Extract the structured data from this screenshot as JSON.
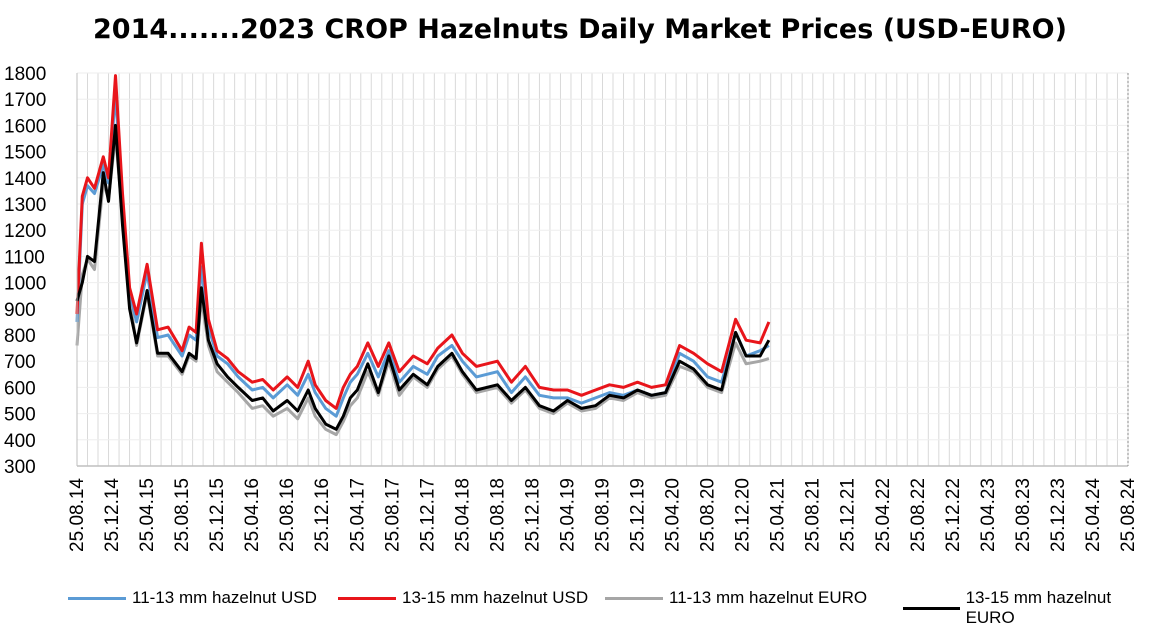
{
  "chart_data": {
    "type": "line",
    "title": "2014.......2023  CROP Hazelnuts Daily Market Prices (USD-EURO)",
    "xlabel": "",
    "ylabel": "",
    "ylim": [
      300,
      1800
    ],
    "y_ticks": [
      300,
      400,
      500,
      600,
      700,
      800,
      900,
      1000,
      1100,
      1200,
      1300,
      1400,
      1500,
      1600,
      1700,
      1800
    ],
    "x_tick_labels": [
      "25.08.14",
      "25.12.14",
      "25.04.15",
      "25.08.15",
      "25.12.15",
      "25.04.16",
      "25.08.16",
      "25.12.16",
      "25.04.17",
      "25.08.17",
      "25.12.17",
      "25.04.18",
      "25.08.18",
      "25.12.18",
      "25.04.19",
      "25.08.19",
      "25.12.19",
      "25.04.20",
      "25.08.20",
      "25.12.20",
      "25.04.21",
      "25.08.21",
      "25.12.21",
      "25.04.22",
      "25.08.22",
      "25.12.22",
      "25.04.23",
      "25.08.23",
      "25.12.23",
      "25.04.24",
      "25.08.24"
    ],
    "grid": true,
    "legend_position": "bottom",
    "series": [
      {
        "name": "11-13 mm hazelnut USD",
        "color": "#5B9BD5",
        "values": [
          [
            0,
            850
          ],
          [
            0.15,
            1300
          ],
          [
            0.3,
            1370
          ],
          [
            0.5,
            1340
          ],
          [
            0.75,
            1450
          ],
          [
            0.9,
            1380
          ],
          [
            1.1,
            1720
          ],
          [
            1.3,
            1320
          ],
          [
            1.5,
            960
          ],
          [
            1.7,
            850
          ],
          [
            2,
            1040
          ],
          [
            2.3,
            790
          ],
          [
            2.6,
            800
          ],
          [
            3,
            720
          ],
          [
            3.2,
            800
          ],
          [
            3.4,
            780
          ],
          [
            3.55,
            1060
          ],
          [
            3.75,
            830
          ],
          [
            4,
            720
          ],
          [
            4.3,
            690
          ],
          [
            4.6,
            640
          ],
          [
            5,
            590
          ],
          [
            5.3,
            600
          ],
          [
            5.6,
            560
          ],
          [
            6,
            610
          ],
          [
            6.3,
            570
          ],
          [
            6.6,
            650
          ],
          [
            6.8,
            580
          ],
          [
            7.1,
            520
          ],
          [
            7.4,
            490
          ],
          [
            7.6,
            560
          ],
          [
            7.8,
            620
          ],
          [
            8,
            650
          ],
          [
            8.3,
            730
          ],
          [
            8.6,
            640
          ],
          [
            8.9,
            740
          ],
          [
            9.2,
            620
          ],
          [
            9.6,
            680
          ],
          [
            10,
            650
          ],
          [
            10.3,
            720
          ],
          [
            10.7,
            760
          ],
          [
            11,
            700
          ],
          [
            11.4,
            640
          ],
          [
            12,
            660
          ],
          [
            12.4,
            580
          ],
          [
            12.8,
            640
          ],
          [
            13.2,
            570
          ],
          [
            13.6,
            560
          ],
          [
            14,
            560
          ],
          [
            14.4,
            540
          ],
          [
            14.8,
            560
          ],
          [
            15.2,
            580
          ],
          [
            15.6,
            570
          ],
          [
            16,
            590
          ],
          [
            16.4,
            570
          ],
          [
            16.8,
            580
          ],
          [
            17.2,
            730
          ],
          [
            17.6,
            700
          ],
          [
            18,
            640
          ],
          [
            18.4,
            620
          ],
          [
            18.8,
            810
          ],
          [
            19.1,
            720
          ],
          [
            19.5,
            740
          ],
          [
            19.75,
            760
          ]
        ]
      },
      {
        "name": "13-15 mm hazelnut USD",
        "color": "#E8151B",
        "values": [
          [
            0,
            880
          ],
          [
            0.15,
            1330
          ],
          [
            0.3,
            1400
          ],
          [
            0.5,
            1360
          ],
          [
            0.75,
            1480
          ],
          [
            0.9,
            1400
          ],
          [
            1.1,
            1790
          ],
          [
            1.3,
            1340
          ],
          [
            1.5,
            980
          ],
          [
            1.7,
            880
          ],
          [
            2,
            1070
          ],
          [
            2.3,
            820
          ],
          [
            2.6,
            830
          ],
          [
            3,
            740
          ],
          [
            3.2,
            830
          ],
          [
            3.4,
            810
          ],
          [
            3.55,
            1150
          ],
          [
            3.75,
            860
          ],
          [
            4,
            740
          ],
          [
            4.3,
            710
          ],
          [
            4.6,
            660
          ],
          [
            5,
            620
          ],
          [
            5.3,
            630
          ],
          [
            5.6,
            590
          ],
          [
            6,
            640
          ],
          [
            6.3,
            600
          ],
          [
            6.6,
            700
          ],
          [
            6.8,
            610
          ],
          [
            7.1,
            550
          ],
          [
            7.4,
            520
          ],
          [
            7.6,
            600
          ],
          [
            7.8,
            650
          ],
          [
            8,
            680
          ],
          [
            8.3,
            770
          ],
          [
            8.6,
            680
          ],
          [
            8.9,
            770
          ],
          [
            9.2,
            660
          ],
          [
            9.6,
            720
          ],
          [
            10,
            690
          ],
          [
            10.3,
            750
          ],
          [
            10.7,
            800
          ],
          [
            11,
            730
          ],
          [
            11.4,
            680
          ],
          [
            12,
            700
          ],
          [
            12.4,
            620
          ],
          [
            12.8,
            680
          ],
          [
            13.2,
            600
          ],
          [
            13.6,
            590
          ],
          [
            14,
            590
          ],
          [
            14.4,
            570
          ],
          [
            14.8,
            590
          ],
          [
            15.2,
            610
          ],
          [
            15.6,
            600
          ],
          [
            16,
            620
          ],
          [
            16.4,
            600
          ],
          [
            16.8,
            610
          ],
          [
            17.2,
            760
          ],
          [
            17.6,
            730
          ],
          [
            18,
            690
          ],
          [
            18.4,
            660
          ],
          [
            18.8,
            860
          ],
          [
            19.1,
            780
          ],
          [
            19.5,
            770
          ],
          [
            19.75,
            850
          ]
        ]
      },
      {
        "name": "11-13 mm hazelnut EURO",
        "color": "#A6A6A6",
        "values": [
          [
            0,
            760
          ],
          [
            0.15,
            1030
          ],
          [
            0.3,
            1090
          ],
          [
            0.5,
            1050
          ],
          [
            0.75,
            1380
          ],
          [
            0.9,
            1320
          ],
          [
            1.1,
            1560
          ],
          [
            1.3,
            1250
          ],
          [
            1.5,
            940
          ],
          [
            1.7,
            760
          ],
          [
            2,
            960
          ],
          [
            2.3,
            720
          ],
          [
            2.6,
            720
          ],
          [
            3,
            650
          ],
          [
            3.2,
            720
          ],
          [
            3.4,
            700
          ],
          [
            3.55,
            940
          ],
          [
            3.75,
            760
          ],
          [
            4,
            660
          ],
          [
            4.3,
            620
          ],
          [
            4.6,
            580
          ],
          [
            5,
            520
          ],
          [
            5.3,
            530
          ],
          [
            5.6,
            490
          ],
          [
            6,
            520
          ],
          [
            6.3,
            480
          ],
          [
            6.6,
            560
          ],
          [
            6.8,
            490
          ],
          [
            7.1,
            440
          ],
          [
            7.4,
            420
          ],
          [
            7.6,
            470
          ],
          [
            7.8,
            530
          ],
          [
            8,
            560
          ],
          [
            8.3,
            660
          ],
          [
            8.6,
            570
          ],
          [
            8.9,
            700
          ],
          [
            9.2,
            570
          ],
          [
            9.6,
            640
          ],
          [
            10,
            600
          ],
          [
            10.3,
            670
          ],
          [
            10.7,
            720
          ],
          [
            11,
            650
          ],
          [
            11.4,
            580
          ],
          [
            12,
            600
          ],
          [
            12.4,
            540
          ],
          [
            12.8,
            590
          ],
          [
            13.2,
            520
          ],
          [
            13.6,
            500
          ],
          [
            14,
            540
          ],
          [
            14.4,
            510
          ],
          [
            14.8,
            520
          ],
          [
            15.2,
            560
          ],
          [
            15.6,
            550
          ],
          [
            16,
            580
          ],
          [
            16.4,
            560
          ],
          [
            16.8,
            570
          ],
          [
            17.2,
            680
          ],
          [
            17.6,
            660
          ],
          [
            18,
            600
          ],
          [
            18.4,
            580
          ],
          [
            18.8,
            770
          ],
          [
            19.1,
            690
          ],
          [
            19.5,
            700
          ],
          [
            19.75,
            710
          ]
        ]
      },
      {
        "name": "13-15 mm hazelnut EURO",
        "color": "#000000",
        "values": [
          [
            0,
            930
          ],
          [
            0.15,
            1000
          ],
          [
            0.3,
            1100
          ],
          [
            0.5,
            1080
          ],
          [
            0.75,
            1420
          ],
          [
            0.9,
            1310
          ],
          [
            1.1,
            1600
          ],
          [
            1.3,
            1220
          ],
          [
            1.5,
            900
          ],
          [
            1.7,
            770
          ],
          [
            2,
            970
          ],
          [
            2.3,
            730
          ],
          [
            2.6,
            730
          ],
          [
            3,
            660
          ],
          [
            3.2,
            730
          ],
          [
            3.4,
            710
          ],
          [
            3.55,
            980
          ],
          [
            3.75,
            780
          ],
          [
            4,
            690
          ],
          [
            4.3,
            640
          ],
          [
            4.6,
            600
          ],
          [
            5,
            550
          ],
          [
            5.3,
            560
          ],
          [
            5.6,
            510
          ],
          [
            6,
            550
          ],
          [
            6.3,
            510
          ],
          [
            6.6,
            590
          ],
          [
            6.8,
            520
          ],
          [
            7.1,
            460
          ],
          [
            7.4,
            440
          ],
          [
            7.6,
            490
          ],
          [
            7.8,
            560
          ],
          [
            8,
            590
          ],
          [
            8.3,
            690
          ],
          [
            8.6,
            580
          ],
          [
            8.9,
            720
          ],
          [
            9.2,
            590
          ],
          [
            9.6,
            650
          ],
          [
            10,
            610
          ],
          [
            10.3,
            680
          ],
          [
            10.7,
            730
          ],
          [
            11,
            660
          ],
          [
            11.4,
            590
          ],
          [
            12,
            610
          ],
          [
            12.4,
            550
          ],
          [
            12.8,
            600
          ],
          [
            13.2,
            530
          ],
          [
            13.6,
            510
          ],
          [
            14,
            550
          ],
          [
            14.4,
            520
          ],
          [
            14.8,
            530
          ],
          [
            15.2,
            570
          ],
          [
            15.6,
            560
          ],
          [
            16,
            590
          ],
          [
            16.4,
            570
          ],
          [
            16.8,
            580
          ],
          [
            17.2,
            700
          ],
          [
            17.6,
            670
          ],
          [
            18,
            610
          ],
          [
            18.4,
            590
          ],
          [
            18.8,
            810
          ],
          [
            19.1,
            720
          ],
          [
            19.5,
            720
          ],
          [
            19.75,
            780
          ]
        ]
      }
    ]
  }
}
